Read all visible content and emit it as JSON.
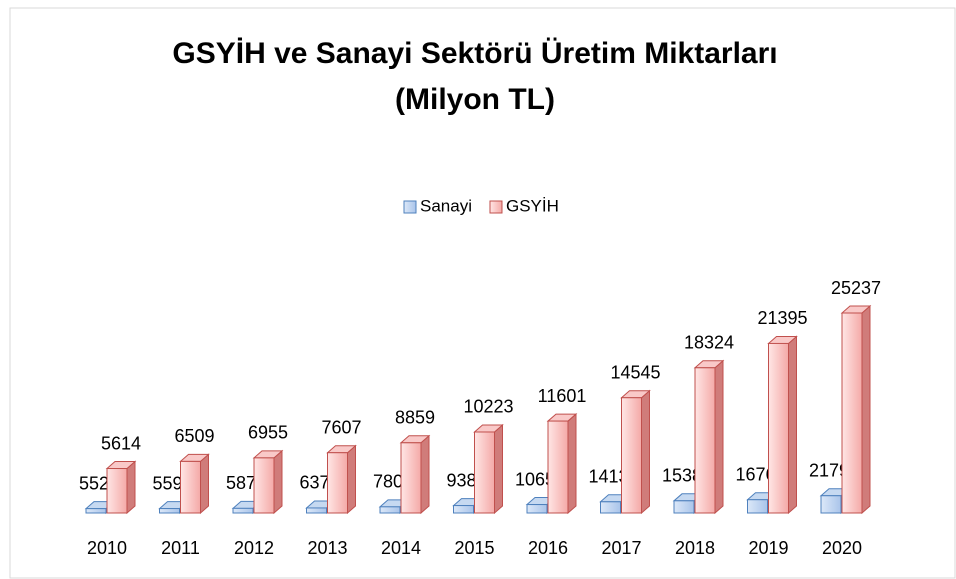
{
  "chart_data": {
    "type": "bar3d",
    "title": [
      "GSYİH ve Sanayi Sektörü Üretim Miktarları",
      "(Milyon TL)"
    ],
    "categories": [
      "2010",
      "2011",
      "2012",
      "2013",
      "2014",
      "2015",
      "2016",
      "2017",
      "2018",
      "2019",
      "2020"
    ],
    "series": [
      {
        "name": "Sanayi",
        "color": "#c6d9f1",
        "edge": "#4f81bd",
        "values": [
          552,
          559,
          587,
          637,
          780,
          938,
          1065,
          1413,
          1538,
          1676,
          2179
        ]
      },
      {
        "name": "GSYİH",
        "color": "#f9c9c8",
        "edge": "#c0504d",
        "values": [
          5614,
          6509,
          6955,
          7607,
          8859,
          10223,
          11601,
          14545,
          18324,
          21395,
          25237
        ]
      }
    ],
    "legend": "top"
  }
}
